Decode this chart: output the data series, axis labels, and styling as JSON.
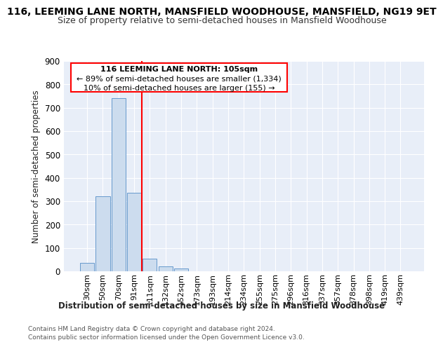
{
  "title": "116, LEEMING LANE NORTH, MANSFIELD WOODHOUSE, MANSFIELD, NG19 9ET",
  "subtitle": "Size of property relative to semi-detached houses in Mansfield Woodhouse",
  "xlabel": "Distribution of semi-detached houses by size in Mansfield Woodhouse",
  "ylabel": "Number of semi-detached properties",
  "footer1": "Contains HM Land Registry data © Crown copyright and database right 2024.",
  "footer2": "Contains public sector information licensed under the Open Government Licence v3.0.",
  "categories": [
    "30sqm",
    "50sqm",
    "70sqm",
    "91sqm",
    "111sqm",
    "132sqm",
    "152sqm",
    "173sqm",
    "193sqm",
    "214sqm",
    "234sqm",
    "255sqm",
    "275sqm",
    "296sqm",
    "316sqm",
    "337sqm",
    "357sqm",
    "378sqm",
    "398sqm",
    "419sqm",
    "439sqm"
  ],
  "values": [
    35,
    320,
    740,
    335,
    55,
    22,
    12,
    0,
    0,
    0,
    0,
    0,
    0,
    0,
    0,
    0,
    0,
    0,
    0,
    0,
    0
  ],
  "bar_color": "#ccdcee",
  "bar_edge_color": "#6699cc",
  "vline_color": "red",
  "vline_index": 4,
  "ann_line1": "116 LEEMING LANE NORTH: 105sqm",
  "ann_line2": "← 89% of semi-detached houses are smaller (1,334)",
  "ann_line3": "10% of semi-detached houses are larger (155) →",
  "ylim": [
    0,
    900
  ],
  "yticks": [
    0,
    100,
    200,
    300,
    400,
    500,
    600,
    700,
    800,
    900
  ],
  "bg_color": "#e8eef8",
  "grid_color": "#ffffff",
  "title_fontsize": 10,
  "subtitle_fontsize": 9
}
